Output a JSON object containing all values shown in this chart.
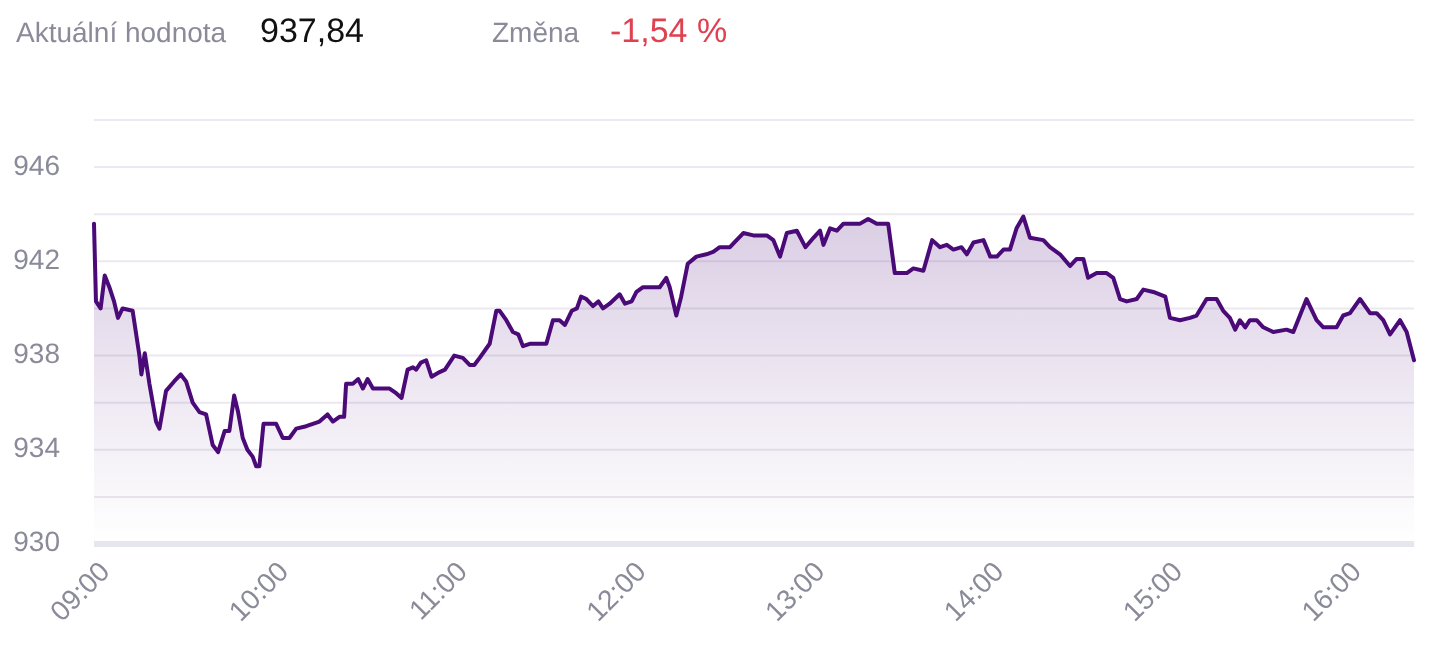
{
  "chart_data": {
    "type": "area",
    "annotations": [
      "Aktuální hodnota",
      "937,84",
      "Změna",
      "-1,54 %"
    ],
    "xlim": [
      9,
      16.383
    ],
    "xticks": [
      {
        "value": 9,
        "label": "09:00"
      },
      {
        "value": 10,
        "label": "10:00"
      },
      {
        "value": 11,
        "label": "11:00"
      },
      {
        "value": 12,
        "label": "12:00"
      },
      {
        "value": 13,
        "label": "13:00"
      },
      {
        "value": 14,
        "label": "14:00"
      },
      {
        "value": 15,
        "label": "15:00"
      },
      {
        "value": 16,
        "label": "16:00"
      }
    ],
    "ylim": [
      930,
      948
    ],
    "yticks": [
      930,
      {
        "value": 932,
        "label": null
      },
      934,
      {
        "value": 936,
        "label": null
      },
      938,
      {
        "value": 940,
        "label": null
      },
      942,
      {
        "value": 944,
        "label": null
      },
      946,
      {
        "value": 948,
        "label": null
      }
    ],
    "grid": "y",
    "series": [
      {
        "color": "#4a0a78",
        "x": [
          9.0,
          9.011,
          9.037,
          9.06,
          9.086,
          9.112,
          9.134,
          9.16,
          9.216,
          9.254,
          9.265,
          9.284,
          9.31,
          9.347,
          9.366,
          9.403,
          9.448,
          9.485,
          9.515,
          9.552,
          9.59,
          9.627,
          9.664,
          9.694,
          9.731,
          9.757,
          9.784,
          9.806,
          9.832,
          9.858,
          9.888,
          9.907,
          9.925,
          9.948,
          10.019,
          10.056,
          10.093,
          10.131,
          10.187,
          10.261,
          10.306,
          10.336,
          10.373,
          10.399,
          10.41,
          10.448,
          10.478,
          10.504,
          10.53,
          10.56,
          10.653,
          10.69,
          10.72,
          10.754,
          10.784,
          10.802,
          10.828,
          10.858,
          10.888,
          10.933,
          10.963,
          10.989,
          11.015,
          11.063,
          11.101,
          11.127,
          11.157,
          11.213,
          11.25,
          11.269,
          11.306,
          11.343,
          11.373,
          11.399,
          11.437,
          11.53,
          11.567,
          11.604,
          11.634,
          11.672,
          11.701,
          11.724,
          11.754,
          11.791,
          11.821,
          11.847,
          11.884,
          11.94,
          11.97,
          12.007,
          12.034,
          12.071,
          12.164,
          12.201,
          12.22,
          12.257,
          12.284,
          12.321,
          12.369,
          12.425,
          12.463,
          12.5,
          12.557,
          12.594,
          12.632,
          12.688,
          12.763,
          12.8,
          12.837,
          12.875,
          12.931,
          12.979,
          13.024,
          13.061,
          13.08,
          13.117,
          13.155,
          13.192,
          13.248,
          13.285,
          13.33,
          13.378,
          13.442,
          13.479,
          13.546,
          13.583,
          13.639,
          13.688,
          13.732,
          13.77,
          13.807,
          13.852,
          13.882,
          13.919,
          13.975,
          14.013,
          14.05,
          14.087,
          14.123,
          14.16,
          14.198,
          14.235,
          14.31,
          14.347,
          14.403,
          14.459,
          14.496,
          14.534,
          14.56,
          14.608,
          14.664,
          14.701,
          14.739,
          14.776,
          14.832,
          14.869,
          14.925,
          14.992,
          15.018,
          15.074,
          15.13,
          15.167,
          15.223,
          15.279,
          15.316,
          15.353,
          15.383,
          15.409,
          15.439,
          15.465,
          15.503,
          15.54,
          15.596,
          15.67,
          15.708,
          15.745,
          15.782,
          15.838,
          15.876,
          15.95,
          15.987,
          16.025,
          16.081,
          16.137,
          16.174,
          16.211,
          16.249,
          16.305,
          16.342,
          16.383
        ],
        "values": [
          943.6,
          940.3,
          940.0,
          941.4,
          940.9,
          940.3,
          939.6,
          940.0,
          939.9,
          938.0,
          937.2,
          938.1,
          936.8,
          935.2,
          934.9,
          936.5,
          936.9,
          937.2,
          936.9,
          936.0,
          935.6,
          935.5,
          934.2,
          933.9,
          934.8,
          934.8,
          936.3,
          935.6,
          934.5,
          934.0,
          933.7,
          933.3,
          933.3,
          935.1,
          935.1,
          934.5,
          934.5,
          934.9,
          935.0,
          935.2,
          935.5,
          935.2,
          935.4,
          935.4,
          936.8,
          936.8,
          937.0,
          936.6,
          937.0,
          936.6,
          936.6,
          936.4,
          936.2,
          937.4,
          937.5,
          937.4,
          937.7,
          937.8,
          937.1,
          937.3,
          937.4,
          937.7,
          938.0,
          937.9,
          937.6,
          937.6,
          937.9,
          938.5,
          939.9,
          939.9,
          939.5,
          939.0,
          938.9,
          938.4,
          938.5,
          938.5,
          939.5,
          939.5,
          939.3,
          939.9,
          940.0,
          940.5,
          940.4,
          940.1,
          940.3,
          940.0,
          940.2,
          940.6,
          940.2,
          940.3,
          940.7,
          940.9,
          940.9,
          941.3,
          940.9,
          939.7,
          940.5,
          941.9,
          942.2,
          942.3,
          942.4,
          942.6,
          942.6,
          942.9,
          943.2,
          943.1,
          943.1,
          942.9,
          942.2,
          943.2,
          943.3,
          942.6,
          943.0,
          943.3,
          942.7,
          943.4,
          943.3,
          943.6,
          943.6,
          943.6,
          943.8,
          943.6,
          943.6,
          941.5,
          941.5,
          941.7,
          941.6,
          942.9,
          942.6,
          942.7,
          942.5,
          942.6,
          942.3,
          942.8,
          942.9,
          942.2,
          942.2,
          942.5,
          942.5,
          943.4,
          943.9,
          943.0,
          942.9,
          942.6,
          942.3,
          941.8,
          942.1,
          942.1,
          941.3,
          941.5,
          941.5,
          941.3,
          940.4,
          940.3,
          940.4,
          940.8,
          940.7,
          940.5,
          939.6,
          939.5,
          939.6,
          939.7,
          940.4,
          940.4,
          939.9,
          939.6,
          939.1,
          939.5,
          939.2,
          939.5,
          939.5,
          939.2,
          939.0,
          939.1,
          939.0,
          939.7,
          940.4,
          939.5,
          939.2,
          939.2,
          939.7,
          939.8,
          940.4,
          939.8,
          939.8,
          939.5,
          938.9,
          939.5,
          939.0,
          937.8
        ]
      }
    ]
  }
}
